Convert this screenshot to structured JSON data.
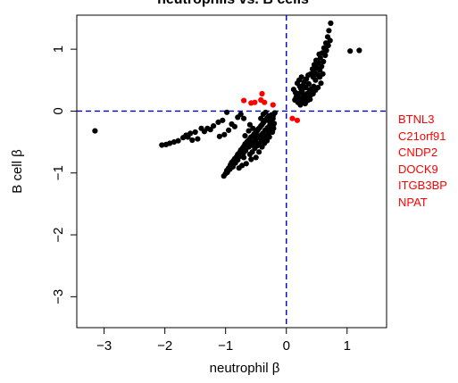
{
  "chart_data": {
    "type": "scatter",
    "title": "neutrophils vs. B cells",
    "xlabel": "neutrophil β",
    "ylabel": "B cell β",
    "xlim": [
      -3.45,
      1.65
    ],
    "ylim": [
      -3.5,
      1.55
    ],
    "xticks": [
      "−3",
      "−2",
      "−1",
      "0",
      "1"
    ],
    "xtick_values": [
      -3,
      -2,
      -1,
      0,
      1
    ],
    "yticks": [
      "−3",
      "−2",
      "−1",
      "0",
      "1"
    ],
    "ytick_values": [
      -3,
      -2,
      -1,
      0,
      1
    ],
    "reference_lines": {
      "x": 0,
      "y": 0,
      "color": "#0000cc",
      "style": "dashed"
    },
    "grid": false,
    "series": [
      {
        "color": "#000000",
        "points": [
          [
            -3.15,
            -0.32
          ],
          [
            -2.05,
            -0.55
          ],
          [
            -1.98,
            -0.54
          ],
          [
            -1.92,
            -0.52
          ],
          [
            -1.85,
            -0.5
          ],
          [
            -1.78,
            -0.48
          ],
          [
            -1.7,
            -0.43
          ],
          [
            -1.65,
            -0.39
          ],
          [
            -1.58,
            -0.36
          ],
          [
            -1.5,
            -0.34
          ],
          [
            -1.46,
            -0.45
          ],
          [
            -1.4,
            -0.28
          ],
          [
            -1.3,
            -0.28
          ],
          [
            -1.2,
            -0.24
          ],
          [
            -1.12,
            -0.18
          ],
          [
            -1.05,
            -0.15
          ],
          [
            -1.02,
            -0.38
          ],
          [
            -1.1,
            -0.41
          ],
          [
            -0.95,
            -0.31
          ],
          [
            -0.9,
            -0.21
          ],
          [
            -0.85,
            -0.25
          ],
          [
            -0.8,
            -0.1
          ],
          [
            -0.75,
            -0.05
          ],
          [
            -0.7,
            -0.12
          ],
          [
            -1.62,
            -0.42
          ],
          [
            -1.55,
            -0.47
          ],
          [
            -1.35,
            -0.33
          ],
          [
            -1.25,
            -0.3
          ],
          [
            -0.98,
            -0.02
          ],
          [
            -1.03,
            -1.05
          ],
          [
            -1.0,
            -1.01
          ],
          [
            -0.98,
            -0.96
          ],
          [
            -0.95,
            -0.92
          ],
          [
            -0.92,
            -0.87
          ],
          [
            -0.9,
            -0.83
          ],
          [
            -0.87,
            -0.8
          ],
          [
            -0.85,
            -0.77
          ],
          [
            -0.82,
            -0.74
          ],
          [
            -0.8,
            -0.7
          ],
          [
            -0.77,
            -0.67
          ],
          [
            -0.75,
            -0.63
          ],
          [
            -0.72,
            -0.6
          ],
          [
            -0.7,
            -0.57
          ],
          [
            -0.68,
            -0.53
          ],
          [
            -0.65,
            -0.5
          ],
          [
            -0.63,
            -0.48
          ],
          [
            -0.6,
            -0.45
          ],
          [
            -0.58,
            -0.42
          ],
          [
            -0.55,
            -0.4
          ],
          [
            -0.53,
            -0.37
          ],
          [
            -0.5,
            -0.35
          ],
          [
            -0.48,
            -0.32
          ],
          [
            -0.46,
            -0.29
          ],
          [
            -0.44,
            -0.27
          ],
          [
            -0.42,
            -0.24
          ],
          [
            -0.4,
            -0.22
          ],
          [
            -0.38,
            -0.19
          ],
          [
            -0.36,
            -0.16
          ],
          [
            -0.34,
            -0.14
          ],
          [
            -0.32,
            -0.12
          ],
          [
            -0.3,
            -0.1
          ],
          [
            -0.28,
            -0.08
          ],
          [
            -0.26,
            -0.07
          ],
          [
            -0.24,
            -0.06
          ],
          [
            -0.97,
            -0.99
          ],
          [
            -0.93,
            -0.94
          ],
          [
            -0.88,
            -0.9
          ],
          [
            -0.84,
            -0.84
          ],
          [
            -0.8,
            -0.79
          ],
          [
            -0.76,
            -0.73
          ],
          [
            -0.71,
            -0.69
          ],
          [
            -0.67,
            -0.64
          ],
          [
            -0.62,
            -0.58
          ],
          [
            -0.58,
            -0.55
          ],
          [
            -0.55,
            -0.51
          ],
          [
            -0.51,
            -0.47
          ],
          [
            -0.47,
            -0.43
          ],
          [
            -0.43,
            -0.4
          ],
          [
            -0.39,
            -0.36
          ],
          [
            -0.35,
            -0.31
          ],
          [
            -0.31,
            -0.27
          ],
          [
            -0.27,
            -0.22
          ],
          [
            -0.6,
            -0.7
          ],
          [
            -0.56,
            -0.66
          ],
          [
            -0.52,
            -0.6
          ],
          [
            -0.48,
            -0.56
          ],
          [
            -0.45,
            -0.52
          ],
          [
            -0.41,
            -0.48
          ],
          [
            -0.37,
            -0.44
          ],
          [
            -0.33,
            -0.4
          ],
          [
            -0.29,
            -0.35
          ],
          [
            -0.25,
            -0.3
          ],
          [
            -0.22,
            -0.25
          ],
          [
            -0.6,
            -0.22
          ],
          [
            -0.62,
            -0.32
          ],
          [
            -0.68,
            -0.4
          ],
          [
            -0.55,
            -0.28
          ],
          [
            -0.52,
            -0.55
          ],
          [
            -0.7,
            -0.75
          ],
          [
            -0.66,
            -0.85
          ],
          [
            -0.58,
            -0.78
          ],
          [
            -0.5,
            -0.75
          ],
          [
            -0.45,
            -0.66
          ],
          [
            -0.4,
            -0.58
          ],
          [
            -0.78,
            -0.92
          ],
          [
            -0.73,
            -0.88
          ],
          [
            -0.42,
            -0.12
          ],
          [
            -0.38,
            -0.05
          ],
          [
            -0.34,
            -0.02
          ],
          [
            -0.3,
            -0.15
          ],
          [
            -0.26,
            -0.18
          ],
          [
            -0.22,
            -0.12
          ],
          [
            -0.2,
            -0.2
          ],
          [
            -0.21,
            -0.28
          ],
          [
            -0.23,
            -0.34
          ],
          [
            -0.19,
            -0.03
          ],
          [
            -0.28,
            -0.42
          ],
          [
            -0.25,
            -0.15
          ],
          [
            -0.22,
            -0.08
          ],
          [
            -0.32,
            -0.48
          ],
          [
            -0.36,
            -0.52
          ],
          [
            0.12,
            0.35
          ],
          [
            0.15,
            0.3
          ],
          [
            0.17,
            0.26
          ],
          [
            0.2,
            0.22
          ],
          [
            0.22,
            0.4
          ],
          [
            0.24,
            0.18
          ],
          [
            0.26,
            0.32
          ],
          [
            0.28,
            0.25
          ],
          [
            0.3,
            0.2
          ],
          [
            0.32,
            0.38
          ],
          [
            0.34,
            0.28
          ],
          [
            0.36,
            0.22
          ],
          [
            0.38,
            0.34
          ],
          [
            0.4,
            0.26
          ],
          [
            0.18,
            0.45
          ],
          [
            0.21,
            0.5
          ],
          [
            0.25,
            0.55
          ],
          [
            0.29,
            0.47
          ],
          [
            0.33,
            0.52
          ],
          [
            0.37,
            0.44
          ],
          [
            0.41,
            0.36
          ],
          [
            0.14,
            0.18
          ],
          [
            0.19,
            0.14
          ],
          [
            0.23,
            0.1
          ],
          [
            0.27,
            0.15
          ],
          [
            0.31,
            0.12
          ],
          [
            0.35,
            0.17
          ],
          [
            0.39,
            0.19
          ],
          [
            0.42,
            0.3
          ],
          [
            0.45,
            0.4
          ],
          [
            0.44,
            0.55
          ],
          [
            0.47,
            0.62
          ],
          [
            0.5,
            0.7
          ],
          [
            0.53,
            0.78
          ],
          [
            0.56,
            0.86
          ],
          [
            0.59,
            0.94
          ],
          [
            0.62,
            1.02
          ],
          [
            0.65,
            1.1
          ],
          [
            0.68,
            1.2
          ],
          [
            0.7,
            1.3
          ],
          [
            0.73,
            1.42
          ],
          [
            0.48,
            0.5
          ],
          [
            0.52,
            0.58
          ],
          [
            0.55,
            0.66
          ],
          [
            0.58,
            0.72
          ],
          [
            0.61,
            0.8
          ],
          [
            0.64,
            0.9
          ],
          [
            0.66,
            0.98
          ],
          [
            0.69,
            1.06
          ],
          [
            0.72,
            1.14
          ],
          [
            0.46,
            0.75
          ],
          [
            0.49,
            0.82
          ],
          [
            0.43,
            0.68
          ],
          [
            0.4,
            0.6
          ],
          [
            0.36,
            0.58
          ],
          [
            0.54,
            0.92
          ],
          [
            0.57,
            0.45
          ],
          [
            0.52,
            0.38
          ],
          [
            0.48,
            0.34
          ],
          [
            0.44,
            0.28
          ],
          [
            0.55,
            0.55
          ],
          [
            0.6,
            0.6
          ],
          [
            1.05,
            0.97
          ],
          [
            1.2,
            0.98
          ],
          [
            0.16,
            0.22
          ],
          [
            0.2,
            0.28
          ],
          [
            0.24,
            0.36
          ],
          [
            0.28,
            0.42
          ]
        ]
      },
      {
        "color": "#ff0000",
        "points": [
          [
            -0.7,
            0.17
          ],
          [
            -0.58,
            0.13
          ],
          [
            -0.52,
            0.14
          ],
          [
            -0.42,
            0.18
          ],
          [
            -0.4,
            0.28
          ],
          [
            -0.36,
            0.14
          ],
          [
            -0.22,
            0.1
          ],
          [
            0.1,
            -0.12
          ],
          [
            0.18,
            -0.15
          ]
        ]
      }
    ]
  },
  "gene_labels": [
    "BTNL3",
    "C21orf91",
    "CNDP2",
    "DOCK9",
    "ITGB3BP",
    "NPAT"
  ],
  "colors": {
    "highlight": "#ff0000",
    "reference": "#0000cc",
    "points": "#000000"
  }
}
